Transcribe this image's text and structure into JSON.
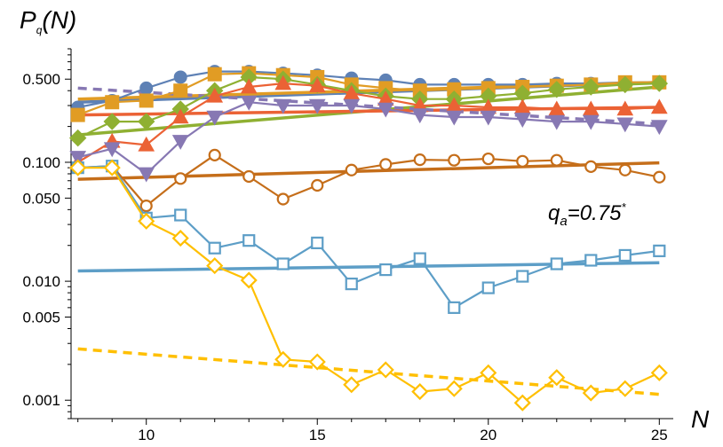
{
  "chart_data": {
    "type": "line",
    "title": "",
    "ylabel": "P_q(N)",
    "ylabel_main": "P",
    "ylabel_sub": "q",
    "ylabel_args": "(N)",
    "xlabel": "N",
    "yscale": "log",
    "xlim": [
      7.8,
      25.2
    ],
    "ylim": [
      0.0007,
      0.9
    ],
    "x_ticks": [
      10,
      15,
      20,
      25
    ],
    "x_tick_labels": [
      "10",
      "15",
      "20",
      "25"
    ],
    "y_ticks": [
      0.001,
      0.005,
      0.01,
      0.05,
      0.1,
      0.5
    ],
    "y_tick_labels": [
      "0.001",
      "0.005",
      "0.010",
      "0.050",
      "0.100",
      "0.500"
    ],
    "annotation": {
      "main": "q",
      "sub": "a",
      "rest": "=0.75",
      "sup": "*"
    },
    "x": [
      8,
      9,
      10,
      11,
      12,
      13,
      14,
      15,
      16,
      17,
      18,
      19,
      20,
      21,
      22,
      23,
      24,
      25
    ],
    "series": [
      {
        "name": "blue-filled-circles",
        "color": "#5E81B5",
        "marker": "circle-filled",
        "values": [
          0.29,
          0.33,
          0.42,
          0.52,
          0.58,
          0.58,
          0.56,
          0.54,
          0.51,
          0.49,
          0.45,
          0.45,
          0.45,
          0.45,
          0.46,
          0.46,
          0.47,
          0.47
        ],
        "fit": {
          "from": [
            8,
            0.32
          ],
          "to": [
            25,
            0.47
          ],
          "dashed": false
        }
      },
      {
        "name": "orange-filled-squares",
        "color": "#E19C24",
        "marker": "square-filled",
        "values": [
          0.25,
          0.32,
          0.33,
          0.4,
          0.55,
          0.56,
          0.54,
          0.52,
          0.45,
          0.42,
          0.4,
          0.41,
          0.42,
          0.43,
          0.44,
          0.45,
          0.47,
          0.47
        ],
        "fit": {
          "from": [
            8,
            0.34
          ],
          "to": [
            25,
            0.47
          ],
          "dashed": false
        }
      },
      {
        "name": "green-filled-diamonds",
        "color": "#8FB032",
        "marker": "diamond-filled",
        "values": [
          0.16,
          0.22,
          0.22,
          0.28,
          0.4,
          0.52,
          0.5,
          0.45,
          0.4,
          0.36,
          0.34,
          0.34,
          0.36,
          0.38,
          0.41,
          0.43,
          0.45,
          0.46
        ],
        "fit": {
          "from": [
            8,
            0.17
          ],
          "to": [
            25,
            0.43
          ],
          "dashed": false
        }
      },
      {
        "name": "red-filled-triangles",
        "color": "#EB6235",
        "marker": "triangle-up-filled",
        "values": [
          0.1,
          0.15,
          0.14,
          0.24,
          0.36,
          0.43,
          0.46,
          0.44,
          0.38,
          0.34,
          0.3,
          0.3,
          0.29,
          0.29,
          0.28,
          0.28,
          0.28,
          0.29
        ],
        "fit": {
          "from": [
            8,
            0.25
          ],
          "to": [
            25,
            0.29
          ],
          "dashed": false
        }
      },
      {
        "name": "purple-filled-inverted-triangles",
        "color": "#8778B3",
        "marker": "triangle-down-filled",
        "values": [
          0.11,
          0.13,
          0.08,
          0.15,
          0.24,
          0.32,
          0.3,
          0.3,
          0.3,
          0.28,
          0.25,
          0.24,
          0.24,
          0.23,
          0.22,
          0.22,
          0.21,
          0.2
        ],
        "fit": {
          "from": [
            8,
            0.42
          ],
          "to": [
            25,
            0.21
          ],
          "dashed": true
        }
      },
      {
        "name": "brown-open-circles",
        "color": "#C56E1A",
        "marker": "circle-open",
        "values": [
          0.09,
          0.093,
          0.043,
          0.073,
          0.115,
          0.076,
          0.049,
          0.064,
          0.086,
          0.096,
          0.105,
          0.104,
          0.107,
          0.102,
          0.104,
          0.092,
          0.086,
          0.075
        ],
        "fit": {
          "from": [
            8,
            0.072
          ],
          "to": [
            25,
            0.099
          ],
          "dashed": false
        }
      },
      {
        "name": "lightblue-open-squares",
        "color": "#5D9EC7",
        "marker": "square-open",
        "values": [
          0.09,
          0.093,
          0.034,
          0.036,
          0.019,
          0.022,
          0.014,
          0.021,
          0.0095,
          0.0125,
          0.0155,
          0.006,
          0.0088,
          0.011,
          0.014,
          0.015,
          0.0165,
          0.018
        ],
        "fit": {
          "from": [
            8,
            0.0122
          ],
          "to": [
            25,
            0.0143
          ],
          "dashed": false
        }
      },
      {
        "name": "yellow-open-diamonds",
        "color": "#FFBF00",
        "marker": "diamond-open",
        "values": [
          0.09,
          0.09,
          0.032,
          0.023,
          0.0135,
          0.0102,
          0.0022,
          0.0021,
          0.00135,
          0.0018,
          0.00118,
          0.00125,
          0.0017,
          0.00095,
          0.00155,
          0.00115,
          0.00125,
          0.0017
        ],
        "fit": {
          "from": [
            8,
            0.0027
          ],
          "to": [
            25,
            0.00112
          ],
          "dashed": true
        }
      }
    ]
  }
}
